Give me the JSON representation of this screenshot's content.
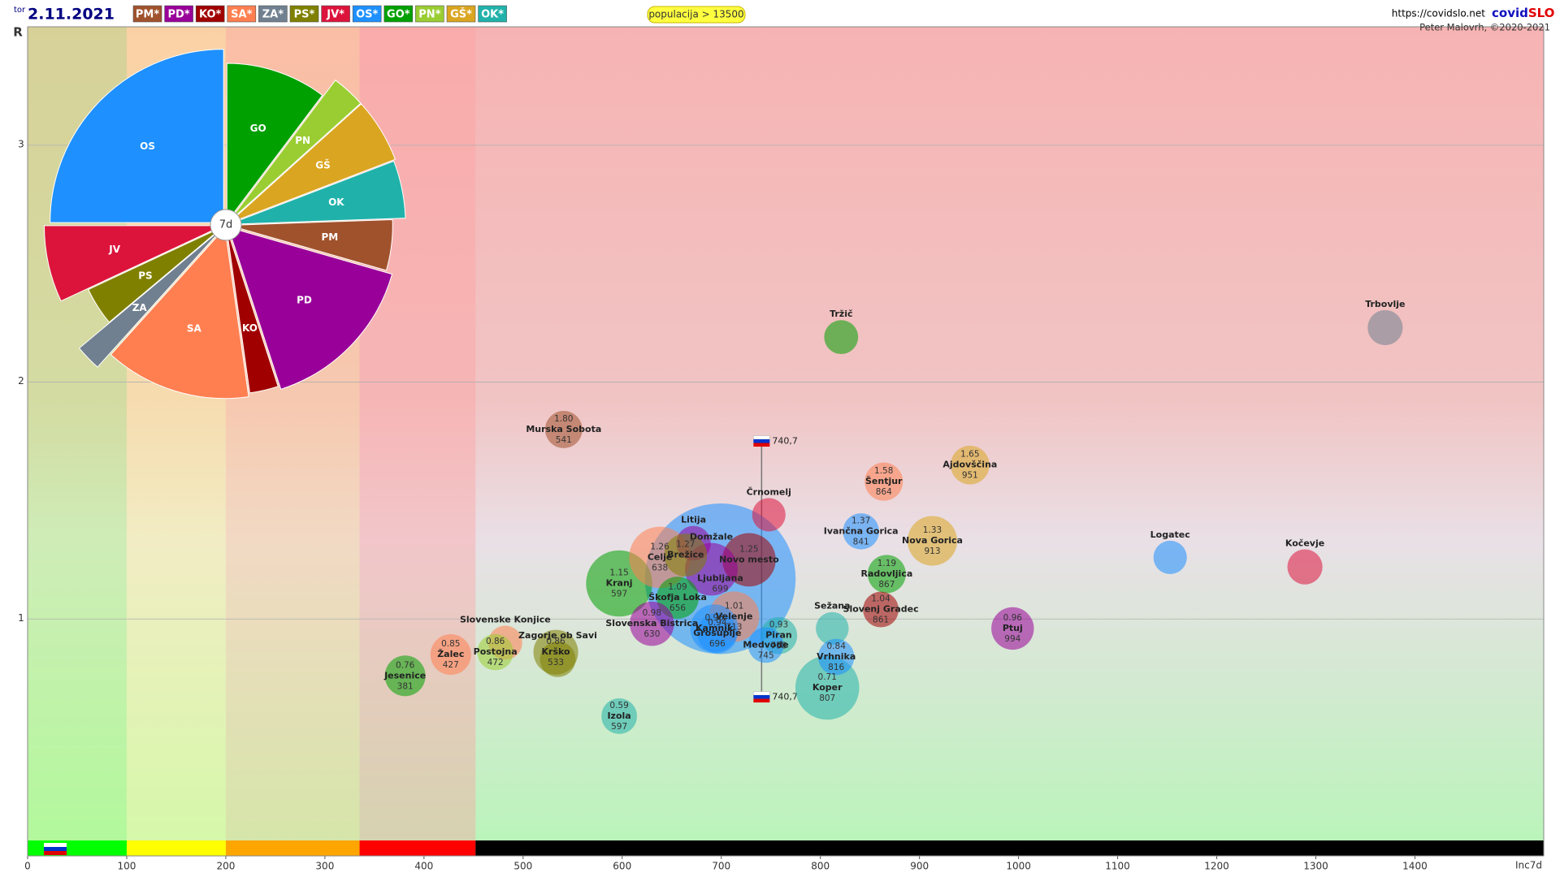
{
  "chart_data": [
    {
      "type": "scatter",
      "day": "tor",
      "title": "2.11.2021",
      "filter": "populacija > 13500",
      "source": "https://covidslo.net",
      "brand": [
        "covid",
        "SLO"
      ],
      "credit": "Peter Malovrh, ©2020-2021",
      "party_buttons": [
        {
          "label": "PM*",
          "color": "#a0522d"
        },
        {
          "label": "PD*",
          "color": "#990099"
        },
        {
          "label": "KO*",
          "color": "#a00000"
        },
        {
          "label": "SA*",
          "color": "#ff7f50"
        },
        {
          "label": "ZA*",
          "color": "#708090"
        },
        {
          "label": "PS*",
          "color": "#808000"
        },
        {
          "label": "JV*",
          "color": "#dc143c"
        },
        {
          "label": "OS*",
          "color": "#1e90ff"
        },
        {
          "label": "GO*",
          "color": "#00a000"
        },
        {
          "label": "PN*",
          "color": "#9acd32"
        },
        {
          "label": "GŠ*",
          "color": "#daa520"
        },
        {
          "label": "OK*",
          "color": "#20b2aa"
        }
      ],
      "x_label": "Inc7d",
      "y_label": "R",
      "xlim": [
        0,
        1530
      ],
      "ylim": [
        0,
        3.5
      ],
      "xticks": [
        0,
        100,
        200,
        300,
        400,
        500,
        600,
        700,
        800,
        900,
        1000,
        1100,
        1200,
        1300,
        1400
      ],
      "yticks": [
        1,
        2,
        3
      ],
      "grid": true,
      "zones": [
        {
          "from": 0,
          "to": 100,
          "color": "#00ff00",
          "tint": "#a8ff70"
        },
        {
          "from": 100,
          "to": 200,
          "color": "#ffff00",
          "tint": "#ffff90"
        },
        {
          "from": 200,
          "to": 335,
          "color": "#ffa500",
          "tint": "#ffd090"
        },
        {
          "from": 335,
          "to": 452,
          "color": "#ff0000",
          "tint": "#ffa0a0"
        },
        {
          "from": 452,
          "to": 1530,
          "color": "#000000",
          "tint": null
        }
      ],
      "national": {
        "x": {
          "value": 740.7,
          "label": "740,7"
        },
        "ylow": 0.67,
        "yhigh": 1.75
      },
      "names": [
        "Ljubljana",
        "Koper",
        "Kranj",
        "Celje",
        "Novo mesto",
        "Velenje",
        "Domžale",
        "Kamnik",
        "Litija",
        "Brežice",
        "Škofja Loka",
        "Slovenska Bistrica",
        "Grosuplje",
        "Murska Sobota",
        "Tržič",
        "Trbovlje",
        "Šentjur",
        "Ajdovščina",
        "Črnomelj",
        "Ivančna Gorica",
        "Nova Gorica",
        "Logatec",
        "Kočevje",
        "Radovljica",
        "Slovenj Gradec",
        "Ptuj",
        "Sežana",
        "Vrhnika",
        "Piran",
        "Medvode",
        "Slovenske Konjice",
        "Žalec",
        "Postojna",
        "Zagorje ob Savi",
        "Krško",
        "Jesenice",
        "Izola"
      ],
      "x": [
        699,
        807,
        597,
        638,
        728,
        713,
        690,
        693,
        672,
        664,
        656,
        630,
        696,
        541,
        821,
        1370,
        864,
        951,
        748,
        841,
        913,
        1153,
        1289,
        867,
        861,
        994,
        812,
        816,
        758,
        745,
        482,
        427,
        472,
        535,
        533,
        381,
        597
      ],
      "values": [
        1.17,
        0.71,
        1.15,
        1.26,
        1.25,
        1.01,
        1.21,
        0.96,
        1.32,
        1.27,
        1.09,
        0.98,
        0.94,
        1.8,
        2.19,
        2.23,
        1.58,
        1.65,
        1.44,
        1.37,
        1.33,
        1.26,
        1.22,
        1.19,
        1.04,
        0.96,
        0.96,
        0.84,
        0.93,
        0.89,
        0.9,
        0.85,
        0.86,
        0.83,
        0.86,
        0.76,
        0.59
      ],
      "value_labels": [
        null,
        "0.71",
        "1.15",
        "1.26",
        "1.25",
        "1.01",
        null,
        "0.96",
        null,
        "1.27",
        "1.09",
        "0.98",
        "0.94",
        "1.80",
        null,
        null,
        "1.58",
        "1.65",
        null,
        "1.37",
        "1.33",
        null,
        null,
        "1.19",
        "1.04",
        "0.96",
        null,
        "0.84",
        "0.93",
        null,
        null,
        "0.85",
        "0.86",
        null,
        "0.86",
        "0.76",
        "0.59"
      ],
      "x_labels": [
        "699",
        "807",
        "597",
        "638",
        null,
        "713",
        null,
        null,
        null,
        null,
        "656",
        "630",
        "696",
        "541",
        null,
        null,
        "864",
        "951",
        null,
        "841",
        "913",
        null,
        null,
        "867",
        "861",
        "994",
        null,
        "816",
        "758",
        "745",
        null,
        "427",
        "472",
        null,
        "533",
        "381",
        "597"
      ],
      "sizes": [
        295,
        53,
        57,
        49,
        37,
        33,
        36,
        30,
        15.5,
        24,
        23,
        25.5,
        21,
        18,
        15,
        16,
        19,
        19.5,
        14.5,
        17,
        32,
        14.5,
        16,
        19,
        16.5,
        23.5,
        14,
        17,
        17.7,
        16.5,
        15,
        21.5,
        17,
        16.5,
        26,
        21.5,
        16.5
      ],
      "colors": [
        "#1e90ff",
        "#20b2aa",
        "#00a000",
        "#ff7f50",
        "#a00000",
        "#ff7f50",
        "#990099",
        "#1e90ff",
        "#990099",
        "#808000",
        "#00a000",
        "#990099",
        "#1e90ff",
        "#a0522d",
        "#00a000",
        "#708090",
        "#ff7f50",
        "#daa520",
        "#dc143c",
        "#1e90ff",
        "#daa520",
        "#1e90ff",
        "#dc143c",
        "#00a000",
        "#a00000",
        "#990099",
        "#20b2aa",
        "#1e90ff",
        "#20b2aa",
        "#1e90ff",
        "#ff7f50",
        "#ff7f50",
        "#9acd32",
        "#808000",
        "#808000",
        "#00a000",
        "#20b2aa"
      ]
    },
    {
      "type": "pie",
      "center_label": "7d",
      "categories": [
        "OS",
        "GO",
        "PN",
        "GŠ",
        "OK",
        "PM",
        "PD",
        "KO",
        "SA",
        "ZA",
        "PS",
        "JV"
      ],
      "values": [
        90,
        37,
        11,
        21,
        19,
        18,
        56,
        10,
        50,
        8,
        15,
        25
      ],
      "radii": [
        175,
        160,
        180,
        180,
        178,
        165,
        172,
        168,
        172,
        190,
        150,
        180
      ],
      "colors": [
        "#1e90ff",
        "#00a000",
        "#9acd32",
        "#daa520",
        "#20b2aa",
        "#a0522d",
        "#990099",
        "#a00000",
        "#ff7f50",
        "#708090",
        "#808000",
        "#dc143c"
      ]
    }
  ]
}
